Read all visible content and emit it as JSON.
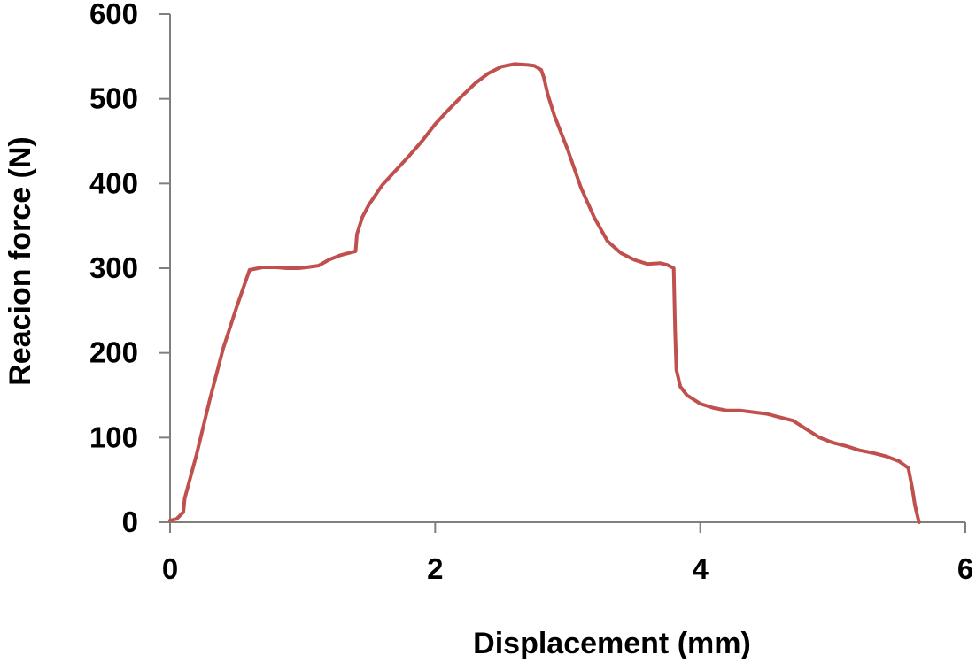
{
  "chart_data": {
    "type": "line",
    "title": "",
    "xlabel": "Displacement (mm)",
    "ylabel": "Reacion force (N)",
    "xlim": [
      0,
      6
    ],
    "ylim": [
      0,
      600
    ],
    "x_ticks": [
      0,
      2,
      4,
      6
    ],
    "y_ticks": [
      0,
      100,
      200,
      300,
      400,
      500,
      600
    ],
    "x_tick_labels": [
      "0",
      "2",
      "4",
      "6"
    ],
    "y_tick_labels": [
      "0",
      "100",
      "200",
      "300",
      "400",
      "500",
      "600"
    ],
    "grid": false,
    "legend": "none",
    "colors": {
      "series": "#c0504d",
      "axis": "#7f7f7f"
    },
    "series": [
      {
        "color": "#c0504d",
        "x": [
          0.0,
          0.05,
          0.1,
          0.11,
          0.2,
          0.3,
          0.4,
          0.5,
          0.6,
          0.7,
          0.8,
          0.88,
          0.92,
          0.97,
          1.03,
          1.12,
          1.2,
          1.28,
          1.35,
          1.4,
          1.41,
          1.45,
          1.5,
          1.6,
          1.7,
          1.8,
          1.9,
          2.0,
          2.1,
          2.2,
          2.3,
          2.4,
          2.5,
          2.6,
          2.7,
          2.75,
          2.8,
          2.82,
          2.85,
          2.9,
          3.0,
          3.1,
          3.2,
          3.3,
          3.35,
          3.4,
          3.5,
          3.6,
          3.7,
          3.75,
          3.8,
          3.81,
          3.82,
          3.85,
          3.9,
          4.0,
          4.1,
          4.2,
          4.3,
          4.4,
          4.5,
          4.6,
          4.7,
          4.8,
          4.9,
          5.0,
          5.1,
          5.2,
          5.3,
          5.4,
          5.5,
          5.57,
          5.6,
          5.62,
          5.65
        ],
        "y": [
          2,
          4,
          12,
          28,
          80,
          145,
          205,
          253,
          298,
          301,
          301,
          300,
          300,
          300,
          301,
          303,
          310,
          315,
          318,
          320,
          340,
          360,
          375,
          398,
          415,
          432,
          450,
          470,
          487,
          503,
          518,
          530,
          538,
          541,
          540,
          539,
          534,
          525,
          505,
          480,
          440,
          395,
          360,
          332,
          325,
          318,
          310,
          305,
          306,
          304,
          300,
          230,
          180,
          160,
          150,
          140,
          135,
          132,
          132,
          130,
          128,
          124,
          120,
          110,
          100,
          94,
          90,
          85,
          82,
          78,
          72,
          64,
          40,
          20,
          0
        ]
      }
    ]
  }
}
